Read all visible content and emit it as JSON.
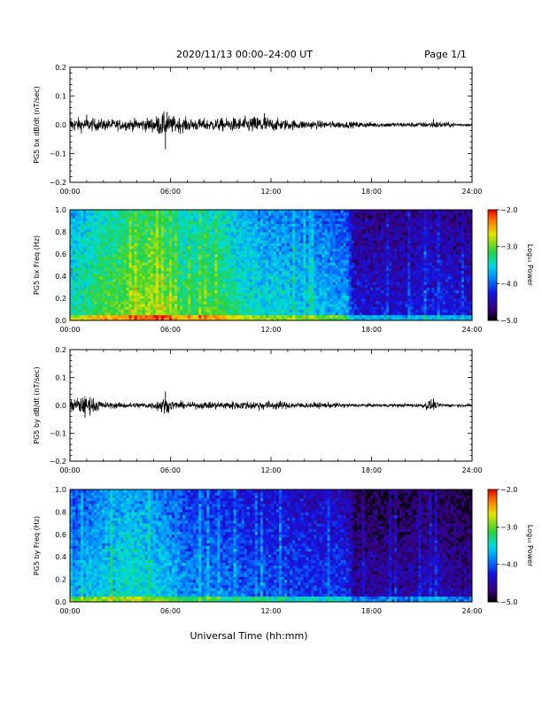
{
  "header": {
    "title": "2020/11/13  00:00–24:00 UT",
    "page": "Page 1/1"
  },
  "footer": {
    "xlabel": "Universal Time (hh:mm)"
  },
  "colors": {
    "waveform": "#000000",
    "frame": "#000000"
  },
  "chart_data": [
    {
      "type": "line",
      "ylabel": "PG5 bx dB/dt (nT/sec)",
      "xlim": [
        0,
        24
      ],
      "ylim": [
        -0.2,
        0.2
      ],
      "x_ticks": [
        "00:00",
        "06:00",
        "12:00",
        "18:00",
        "24:00"
      ],
      "y_ticks": [
        "−0.2",
        "−0.1",
        "0.0",
        "0.1",
        "0.2"
      ],
      "y_tick_values": [
        -0.2,
        -0.1,
        0.0,
        0.1,
        0.2
      ],
      "envelope": {
        "x": [
          0,
          1,
          2,
          3,
          4,
          5,
          5.5,
          6,
          7,
          8,
          9,
          10,
          11,
          11.5,
          12,
          13,
          14,
          15,
          16,
          17,
          18,
          19,
          20,
          21,
          22,
          23,
          24
        ],
        "amplitude": [
          0.025,
          0.022,
          0.02,
          0.018,
          0.02,
          0.025,
          0.04,
          0.03,
          0.022,
          0.02,
          0.022,
          0.024,
          0.028,
          0.035,
          0.022,
          0.018,
          0.015,
          0.013,
          0.012,
          0.01,
          0.009,
          0.008,
          0.008,
          0.009,
          0.012,
          0.006,
          0.005
        ]
      },
      "spikes": [
        {
          "x": 5.7,
          "y": -0.085
        },
        {
          "x": 5.8,
          "y": 0.045
        },
        {
          "x": 11.6,
          "y": 0.04
        },
        {
          "x": 1.0,
          "y": 0.035
        },
        {
          "x": 21.7,
          "y": 0.02
        }
      ]
    },
    {
      "type": "heatmap",
      "ylabel": "PG5 bx Freq (Hz)",
      "xlim": [
        0,
        24
      ],
      "ylim": [
        0.0,
        1.0
      ],
      "x_ticks": [
        "00:00",
        "06:00",
        "12:00",
        "18:00",
        "24:00"
      ],
      "y_ticks": [
        "0.0",
        "0.2",
        "0.4",
        "0.6",
        "0.8",
        "1.0"
      ],
      "y_tick_values": [
        0,
        0.2,
        0.4,
        0.6,
        0.8,
        1.0
      ],
      "colorbar": {
        "label": "Log₁₀ Power",
        "range": [
          -5.0,
          -2.0
        ],
        "ticks": [
          "−2.0",
          "−3.0",
          "−4.0",
          "−5.0"
        ],
        "tick_values": [
          -2.0,
          -3.0,
          -4.0,
          -5.0
        ]
      },
      "power_profile": {
        "x": [
          0,
          1,
          2,
          3,
          4,
          5,
          6,
          7,
          8,
          9,
          10,
          11,
          12,
          13,
          14,
          15,
          16,
          16.5,
          17,
          18,
          19,
          20,
          21,
          22,
          23,
          24
        ],
        "log_power": [
          -3.4,
          -3.2,
          -3.1,
          -3.0,
          -2.9,
          -2.8,
          -3.0,
          -3.2,
          -3.1,
          -3.1,
          -3.3,
          -3.4,
          -3.5,
          -3.5,
          -3.6,
          -3.6,
          -3.7,
          -3.7,
          -4.3,
          -4.3,
          -4.3,
          -4.3,
          -4.2,
          -4.2,
          -4.3,
          -4.3
        ]
      }
    },
    {
      "type": "line",
      "ylabel": "PG5 by dB/dt (nT/sec)",
      "xlim": [
        0,
        24
      ],
      "ylim": [
        -0.2,
        0.2
      ],
      "x_ticks": [
        "00:00",
        "06:00",
        "12:00",
        "18:00",
        "24:00"
      ],
      "y_ticks": [
        "−0.2",
        "−0.1",
        "0.0",
        "0.1",
        "0.2"
      ],
      "y_tick_values": [
        -0.2,
        -0.1,
        0.0,
        0.1,
        0.2
      ],
      "envelope": {
        "x": [
          0,
          0.5,
          1,
          1.5,
          2,
          3,
          4,
          5,
          5.5,
          6,
          7,
          8,
          9,
          10,
          11,
          12,
          13,
          14,
          15,
          16,
          17,
          18,
          19,
          20,
          21,
          21.5,
          22,
          23,
          24
        ],
        "amplitude": [
          0.02,
          0.03,
          0.03,
          0.025,
          0.012,
          0.01,
          0.01,
          0.012,
          0.03,
          0.018,
          0.01,
          0.012,
          0.014,
          0.014,
          0.016,
          0.016,
          0.012,
          0.01,
          0.01,
          0.009,
          0.007,
          0.006,
          0.006,
          0.006,
          0.008,
          0.02,
          0.008,
          0.005,
          0.005
        ]
      },
      "spikes": [
        {
          "x": 5.7,
          "y": 0.05
        },
        {
          "x": 0.9,
          "y": -0.045
        },
        {
          "x": 1.2,
          "y": 0.03
        },
        {
          "x": 21.7,
          "y": 0.025
        }
      ]
    },
    {
      "type": "heatmap",
      "ylabel": "PG5 by Freq (Hz)",
      "xlim": [
        0,
        24
      ],
      "ylim": [
        0.0,
        1.0
      ],
      "x_ticks": [
        "00:00",
        "06:00",
        "12:00",
        "18:00",
        "24:00"
      ],
      "y_ticks": [
        "0.0",
        "0.2",
        "0.4",
        "0.6",
        "0.8",
        "1.0"
      ],
      "y_tick_values": [
        0,
        0.2,
        0.4,
        0.6,
        0.8,
        1.0
      ],
      "colorbar": {
        "label": "Log₁₀ Power",
        "range": [
          -5.0,
          -2.0
        ],
        "ticks": [
          "−2.0",
          "−3.0",
          "−4.0",
          "−5.0"
        ],
        "tick_values": [
          -2.0,
          -3.0,
          -4.0,
          -5.0
        ]
      },
      "power_profile": {
        "x": [
          0,
          1,
          2,
          3,
          4,
          5,
          6,
          7,
          8,
          9,
          10,
          11,
          12,
          13,
          14,
          15,
          16,
          16.5,
          17,
          18,
          19,
          20,
          21,
          22,
          23,
          24
        ],
        "log_power": [
          -3.8,
          -3.6,
          -3.5,
          -3.4,
          -3.4,
          -3.5,
          -3.6,
          -3.8,
          -3.8,
          -3.9,
          -3.9,
          -4.0,
          -4.0,
          -4.0,
          -4.1,
          -4.1,
          -4.1,
          -4.1,
          -4.5,
          -4.5,
          -4.5,
          -4.5,
          -4.4,
          -4.4,
          -4.5,
          -4.5
        ]
      }
    }
  ]
}
